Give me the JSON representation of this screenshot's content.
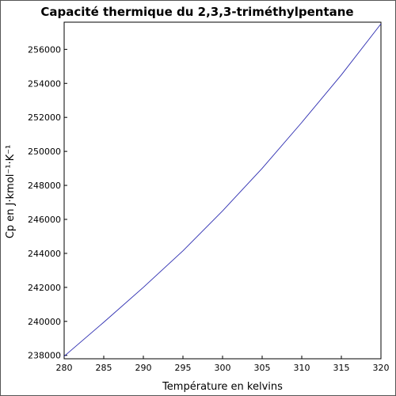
{
  "chart_data": {
    "type": "line",
    "title": "Capacité thermique du 2,3,3-triméthylpentane",
    "xlabel": "Température en kelvins",
    "ylabel": "Cp en J·kmol⁻¹·K⁻¹",
    "xlim": [
      280,
      320
    ],
    "ylim": [
      237800,
      257600
    ],
    "x_ticks": [
      "280",
      "285",
      "290",
      "295",
      "300",
      "305",
      "310",
      "315",
      "320"
    ],
    "y_ticks": [
      "238000",
      "240000",
      "242000",
      "244000",
      "246000",
      "248000",
      "250000",
      "252000",
      "254000",
      "256000"
    ],
    "grid": false,
    "line_color": "#2b2bb0",
    "series": [
      {
        "x": [
          280,
          285,
          290,
          295,
          300,
          305,
          310,
          315,
          320
        ],
        "values": [
          237950,
          239950,
          242000,
          244150,
          246500,
          249000,
          251700,
          254500,
          257500
        ]
      }
    ]
  }
}
